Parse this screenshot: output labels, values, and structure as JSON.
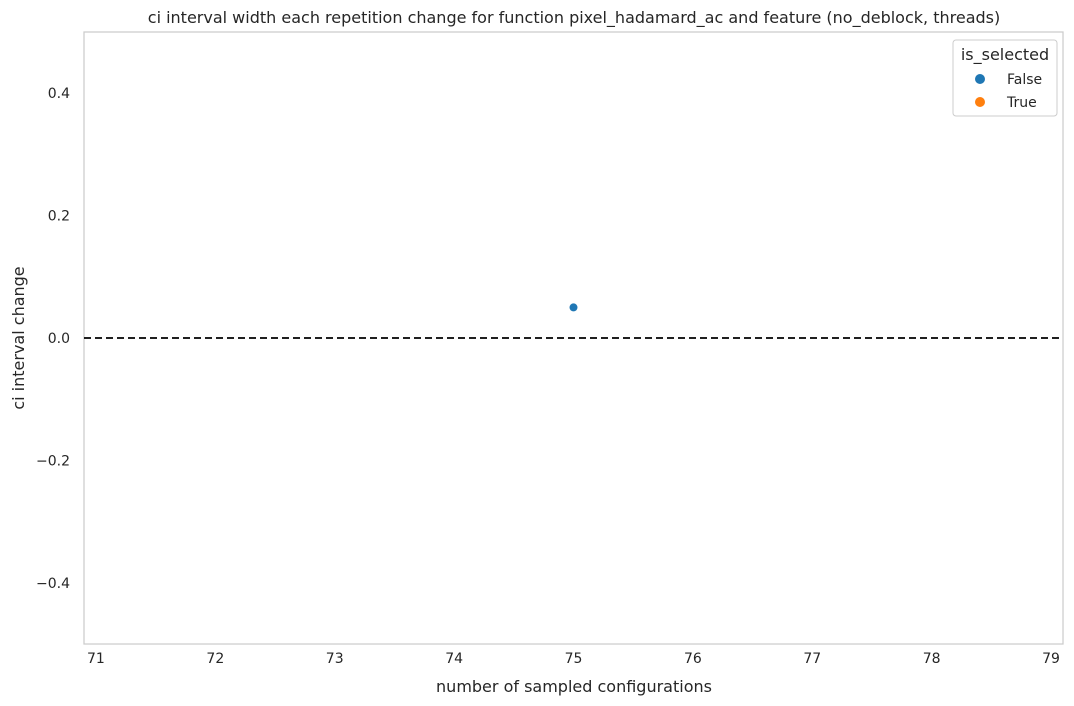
{
  "chart_data": {
    "type": "scatter",
    "title": "ci interval width each repetition change for function pixel_hadamard_ac and feature (no_deblock, threads)",
    "xlabel": "number of sampled configurations",
    "ylabel": "ci interval change",
    "xlim": [
      70.9,
      79.1
    ],
    "ylim": [
      -0.5,
      0.5
    ],
    "xticks": [
      71,
      72,
      73,
      74,
      75,
      76,
      77,
      78,
      79
    ],
    "yticks": [
      0.4,
      0.2,
      0.0,
      -0.2,
      -0.4
    ],
    "ytick_labels": [
      "0.4",
      "0.2",
      "0.0",
      "−0.2",
      "−0.4"
    ],
    "grid": false,
    "reference_line": {
      "y": 0.0,
      "style": "dashed",
      "color": "#000000"
    },
    "legend": {
      "title": "is_selected",
      "placement": "top-right",
      "entries": [
        {
          "label": "False",
          "color": "#1f77b4"
        },
        {
          "label": "True",
          "color": "#ff7f0e"
        }
      ]
    },
    "series": [
      {
        "name": "False",
        "color": "#1f77b4",
        "points": [
          {
            "x": 75,
            "y": 0.05
          }
        ]
      },
      {
        "name": "True",
        "color": "#ff7f0e",
        "points": []
      }
    ]
  }
}
